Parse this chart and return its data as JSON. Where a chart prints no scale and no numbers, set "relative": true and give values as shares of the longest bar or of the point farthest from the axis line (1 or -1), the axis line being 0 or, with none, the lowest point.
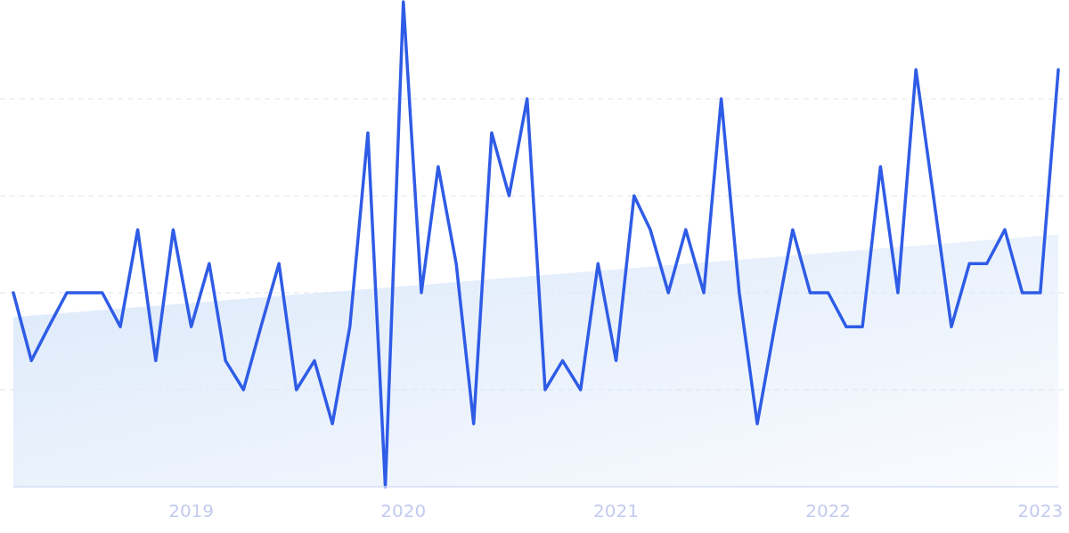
{
  "chart_data": {
    "type": "line",
    "relative": true,
    "grid": "y",
    "line_style": "solid",
    "marker": "none",
    "xlim": [
      "2018-03",
      "2023-02"
    ],
    "xticks": [
      "2019",
      "2020",
      "2021",
      "2022",
      "2023"
    ],
    "series": [
      {
        "type": "area",
        "color": "#dbe8fa",
        "x": [
          "2018-03",
          "2023-02"
        ],
        "values": [
          0.35,
          0.52
        ]
      },
      {
        "color": "#2f5ce6",
        "x": [
          "2018-03",
          "2018-04",
          "2018-05",
          "2018-06",
          "2018-07",
          "2018-08",
          "2018-09",
          "2018-10",
          "2018-11",
          "2018-12",
          "2019-01",
          "2019-02",
          "2019-03",
          "2019-04",
          "2019-05",
          "2019-06",
          "2019-07",
          "2019-08",
          "2019-09",
          "2019-10",
          "2019-11",
          "2019-12",
          "2020-01",
          "2020-02",
          "2020-03",
          "2020-04",
          "2020-05",
          "2020-06",
          "2020-07",
          "2020-08",
          "2020-09",
          "2020-10",
          "2020-11",
          "2020-12",
          "2021-01",
          "2021-02",
          "2021-03",
          "2021-04",
          "2021-05",
          "2021-06",
          "2021-07",
          "2021-08",
          "2021-09",
          "2021-10",
          "2021-11",
          "2021-12",
          "2022-01",
          "2022-02",
          "2022-03",
          "2022-04",
          "2022-05",
          "2022-06",
          "2022-07",
          "2022-08",
          "2022-09",
          "2022-10",
          "2022-11",
          "2022-12",
          "2023-01",
          "2023-02"
        ],
        "values": [
          0.4,
          0.26,
          0.33,
          0.4,
          0.4,
          0.4,
          0.33,
          0.53,
          0.26,
          0.53,
          0.33,
          0.46,
          0.26,
          0.2,
          0.33,
          0.46,
          0.2,
          0.26,
          0.13,
          0.33,
          0.73,
          0,
          1,
          0.4,
          0.66,
          0.46,
          0.13,
          0.73,
          0.6,
          0.8,
          0.2,
          0.26,
          0.2,
          0.46,
          0.26,
          0.6,
          0.53,
          0.4,
          0.53,
          0.4,
          0.8,
          0.4,
          0.13,
          0.33,
          0.53,
          0.4,
          0.4,
          0.33,
          0.33,
          0.66,
          0.4,
          0.86,
          0.6,
          0.33,
          0.46,
          0.46,
          0.53,
          0.4,
          0.4,
          0.86
        ]
      }
    ]
  }
}
